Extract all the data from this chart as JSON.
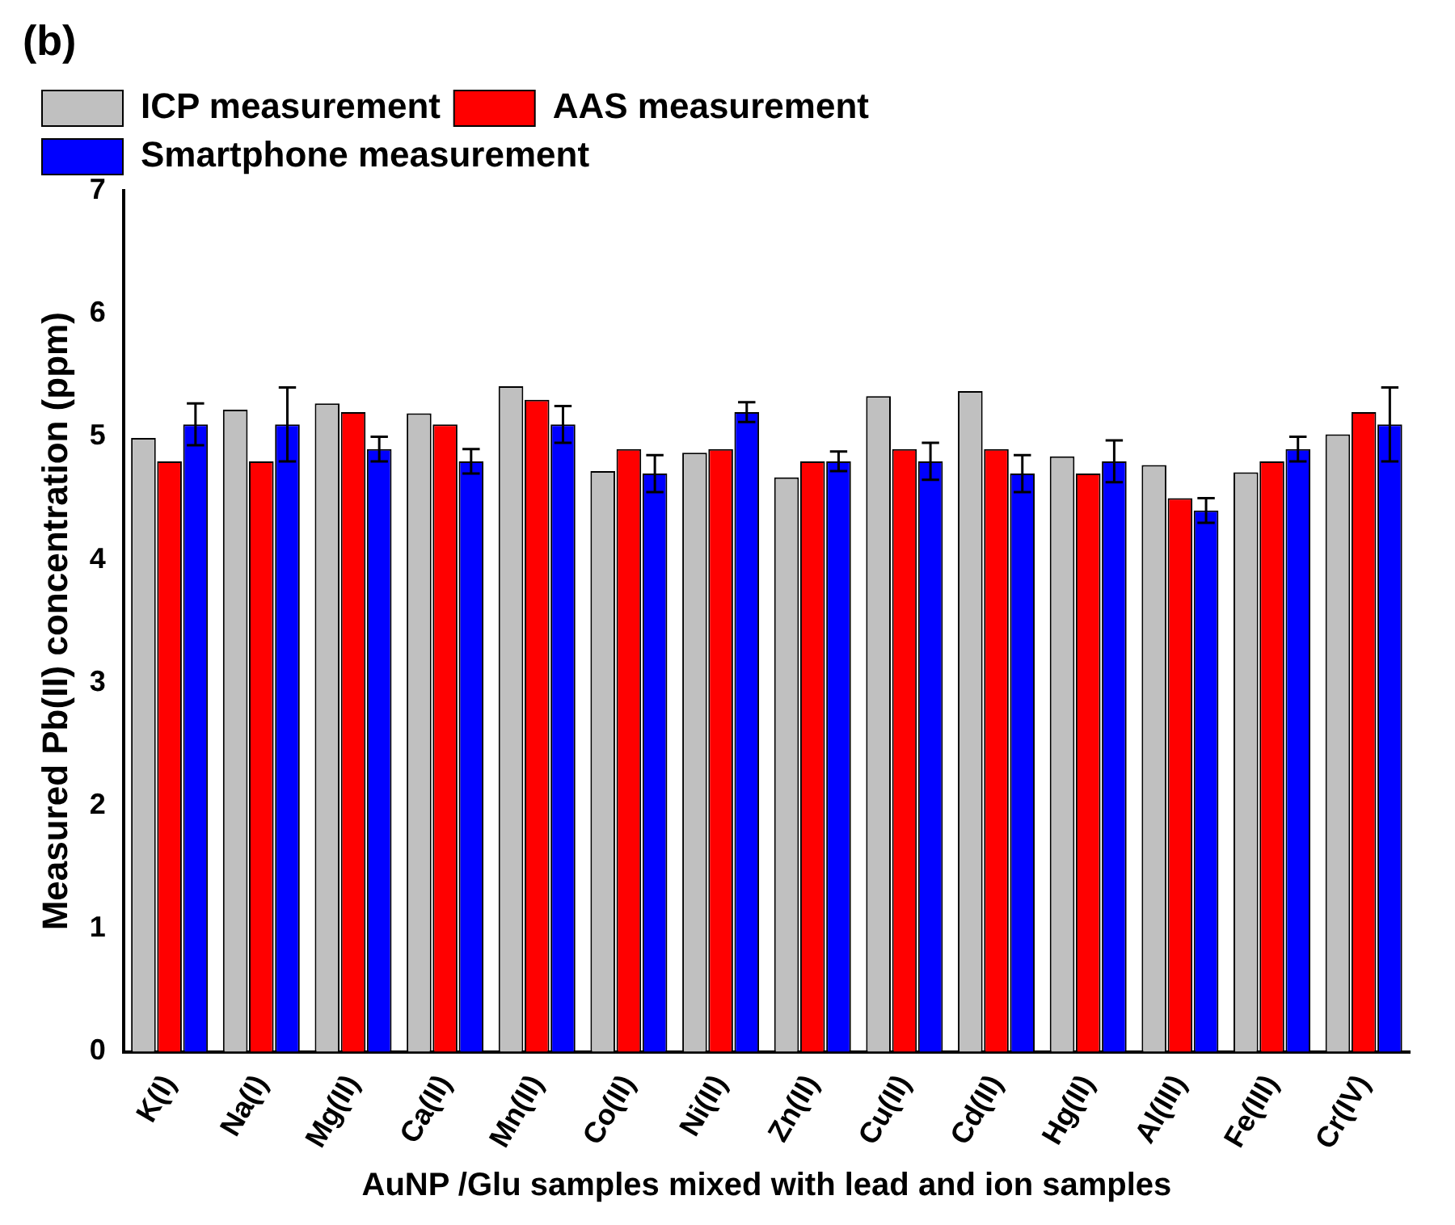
{
  "chart_data": {
    "type": "bar",
    "annotations": [
      "(b)"
    ],
    "xlabel": "AuNP /Glu samples mixed with lead and ion samples",
    "ylabel": "Measured Pb(II) concentration (ppm)",
    "categories": [
      "K(I)",
      "Na(I)",
      "Mg(II)",
      "Ca(II)",
      "Mn(II)",
      "Co(II)",
      "Ni(II)",
      "Zn(II)",
      "Cu(II)",
      "Cd(II)",
      "Hg(II)",
      "Al(III)",
      "Fe(III)",
      "Cr(IV)"
    ],
    "series": [
      {
        "name": "ICP measurement",
        "color": "#c0c0c0",
        "values": [
          4.99,
          5.22,
          5.27,
          5.19,
          5.41,
          4.72,
          4.87,
          4.67,
          5.33,
          5.37,
          4.84,
          4.77,
          4.71,
          5.02
        ]
      },
      {
        "name": "AAS measurement",
        "color": "#ff0000",
        "values": [
          4.8,
          4.8,
          5.2,
          5.1,
          5.3,
          4.9,
          4.9,
          4.8,
          4.9,
          4.9,
          4.7,
          4.5,
          4.8,
          5.2
        ]
      },
      {
        "name": "Smartphone measurement",
        "color": "#0000ff",
        "values": [
          5.1,
          5.1,
          4.9,
          4.8,
          5.1,
          4.7,
          5.2,
          4.8,
          4.8,
          4.7,
          4.8,
          4.4,
          4.9,
          5.1
        ],
        "errors": [
          0.17,
          0.3,
          0.1,
          0.1,
          0.15,
          0.15,
          0.08,
          0.08,
          0.15,
          0.15,
          0.17,
          0.1,
          0.1,
          0.3
        ]
      }
    ],
    "ylim": [
      0,
      7
    ],
    "yticks": [
      0,
      1,
      2,
      3,
      4,
      5,
      6,
      7
    ],
    "grid": false,
    "legend": "top left"
  }
}
